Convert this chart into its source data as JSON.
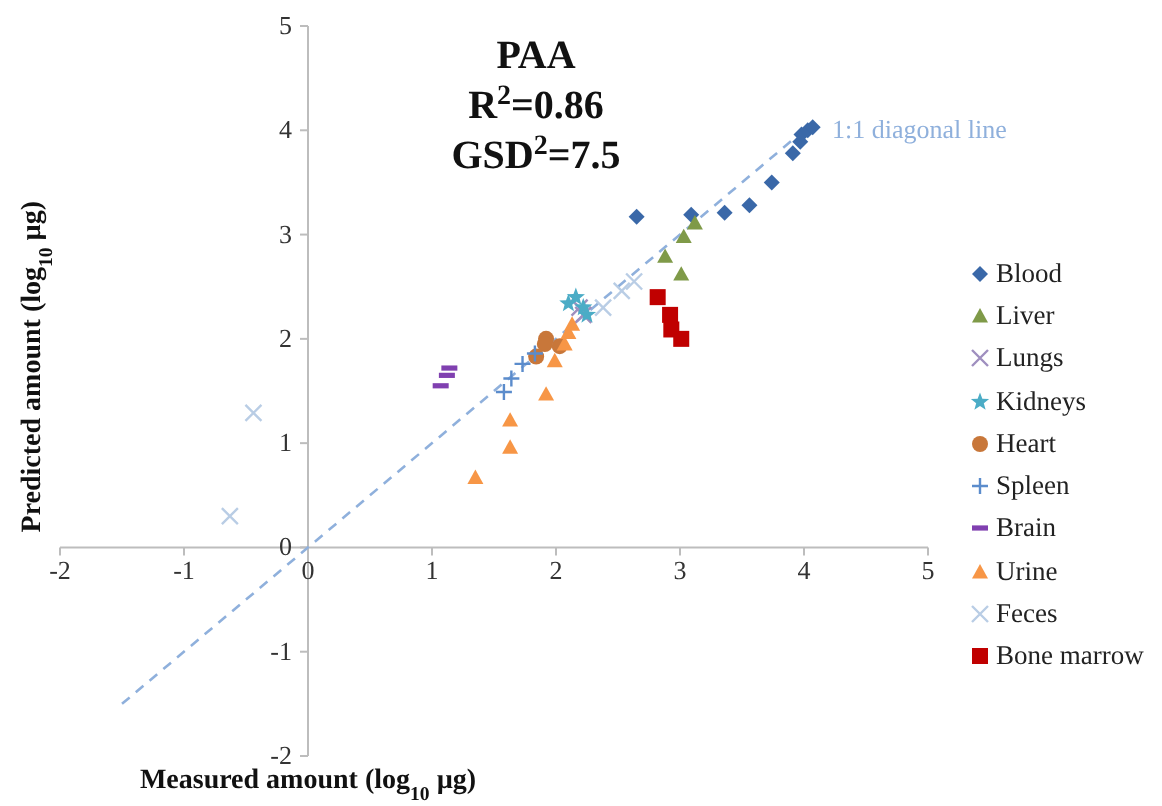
{
  "chart_data": {
    "type": "scatter",
    "title": "PAA",
    "annotations": [
      "R$^{2}$=0.86",
      "GSD$^{2}$=7.5"
    ],
    "xlabel": "Measured amount (log$_{10}$ µg)",
    "ylabel": "Predicted amount (log$_{10}$ µg)",
    "xlim": [
      -2,
      5
    ],
    "xticks": [
      -2,
      -1,
      0,
      1,
      2,
      3,
      4,
      5
    ],
    "ylim": [
      -2,
      5
    ],
    "yticks": [
      -2,
      -1,
      0,
      1,
      2,
      3,
      4,
      5
    ],
    "grid": false,
    "legend": "right",
    "series": [
      {
        "name": "Blood",
        "color": "#3a68a8",
        "marker": "diamond",
        "x": [
          2.65,
          3.09,
          3.36,
          3.56,
          3.74,
          3.91,
          3.97,
          3.98,
          4.03,
          4.07
        ],
        "values": [
          3.17,
          3.19,
          3.21,
          3.28,
          3.5,
          3.78,
          3.89,
          3.96,
          4.0,
          4.03
        ]
      },
      {
        "name": "Liver",
        "color": "#7f9a48",
        "marker": "triangle",
        "x": [
          2.88,
          3.03,
          3.12,
          3.01
        ],
        "values": [
          2.79,
          2.98,
          3.11,
          2.62
        ]
      },
      {
        "name": "Lungs",
        "color": "#9f8fbf",
        "marker": "cross",
        "x": [
          2.19,
          2.22
        ],
        "values": [
          2.3,
          2.23
        ]
      },
      {
        "name": "Kidneys",
        "color": "#4bacc6",
        "marker": "star",
        "x": [
          2.1,
          2.16,
          2.25,
          2.22
        ],
        "values": [
          2.34,
          2.4,
          2.23,
          2.3
        ]
      },
      {
        "name": "Heart",
        "color": "#c8773a",
        "marker": "circle",
        "x": [
          1.84,
          1.92,
          1.91,
          2.03
        ],
        "values": [
          1.83,
          2.0,
          1.95,
          1.93
        ]
      },
      {
        "name": "Spleen",
        "color": "#5b8ccc",
        "marker": "plus",
        "x": [
          1.58,
          1.64,
          1.73,
          1.83
        ],
        "values": [
          1.49,
          1.62,
          1.76,
          1.86
        ]
      },
      {
        "name": "Brain",
        "color": "#8040b0",
        "x": [
          1.07,
          1.12,
          1.14
        ],
        "values": [
          1.55,
          1.65,
          1.72
        ]
      },
      {
        "name": "Urine",
        "color": "#f79646",
        "marker": "triangle",
        "x": [
          1.35,
          1.63,
          1.63,
          1.92,
          1.99,
          2.07,
          2.1,
          2.13
        ],
        "values": [
          0.67,
          0.96,
          1.22,
          1.47,
          1.79,
          1.95,
          2.06,
          2.14
        ]
      },
      {
        "name": "Feces",
        "color": "#b9cde5",
        "marker": "cross",
        "x": [
          -0.63,
          -0.44,
          2.38,
          2.53,
          2.63
        ],
        "values": [
          0.3,
          1.29,
          2.3,
          2.46,
          2.55
        ]
      },
      {
        "name": "Bone marrow",
        "color": "#c00000",
        "marker": "square",
        "x": [
          2.82,
          2.92,
          2.93,
          3.01
        ],
        "values": [
          2.4,
          2.23,
          2.09,
          2.0
        ]
      },
      {
        "name": "1:1 diagonal line",
        "type": "line",
        "color": "#8fb0dc",
        "line_style": "dashed",
        "marker": "none",
        "x": [
          -1.5,
          4
        ],
        "values": [
          -1.5,
          4
        ]
      }
    ]
  }
}
